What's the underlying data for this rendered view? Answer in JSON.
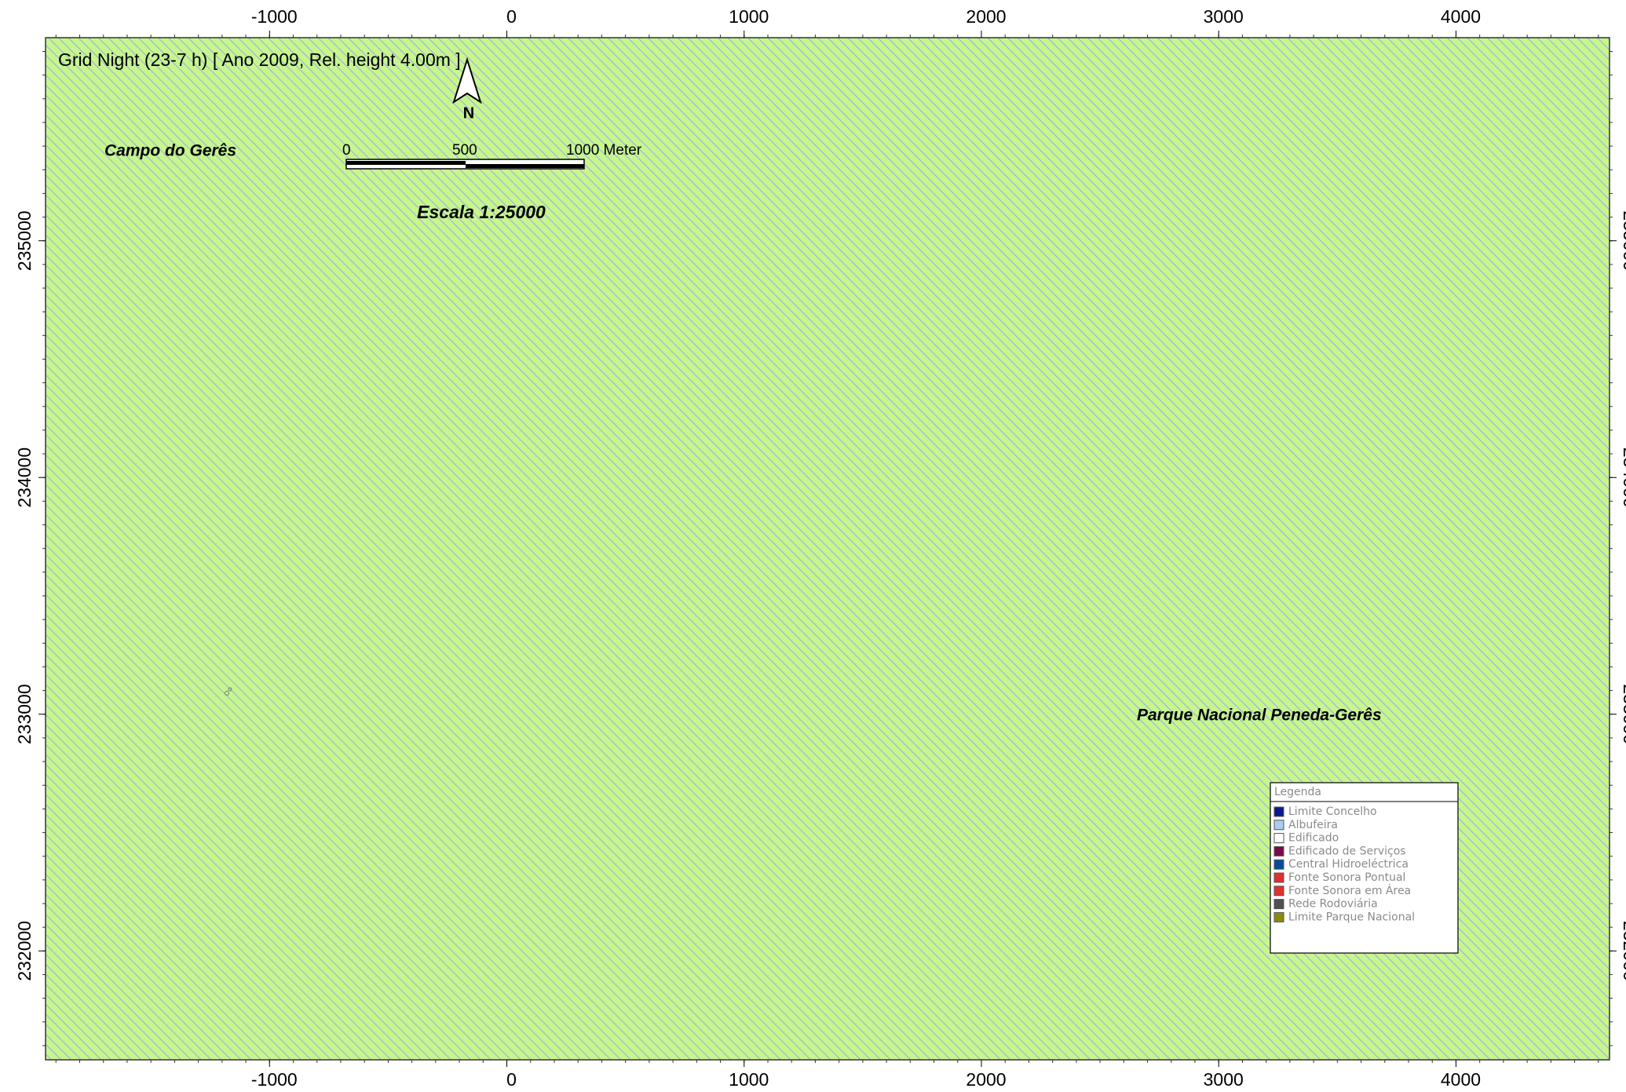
{
  "map": {
    "title": "Grid Night (23-7 h)  [ Ano 2009, Rel. height  4.00m ]",
    "north_label": "N",
    "place_labels": [
      "Campo do Gerês",
      "Parque Nacional Peneda-Gerês"
    ],
    "scale_bar": {
      "labels": [
        "0",
        "500",
        "1000 Meter"
      ],
      "caption": "Escala 1:25000"
    },
    "xlim": [
      -1944,
      4647
    ],
    "xticks": [
      -1000,
      0,
      1000,
      2000,
      3000,
      4000
    ],
    "ylim": [
      231540,
      235858
    ],
    "yticks": [
      232000,
      233000,
      234000,
      235000
    ],
    "fill_color": "#c6f78c",
    "hatch_color": "#a4a8e6",
    "legend": {
      "title": "Legenda",
      "items": [
        {
          "label": "Limite Concelho",
          "color": "#0a1a8c"
        },
        {
          "label": "Albufeira",
          "color": "#a9cdf2"
        },
        {
          "label": "Edificado",
          "color": "#ffffff"
        },
        {
          "label": "Edificado de Serviços",
          "color": "#7a0a4a"
        },
        {
          "label": "Central Hidroeléctrica",
          "color": "#0a4a9a"
        },
        {
          "label": "Fonte Sonora Pontual",
          "color": "#e03030"
        },
        {
          "label": "Fonte Sonora em Área",
          "color": "#e03030"
        },
        {
          "label": "Rede Rodoviária",
          "color": "#505050"
        },
        {
          "label": "Limite Parque Nacional",
          "color": "#8a8a10"
        }
      ]
    }
  }
}
